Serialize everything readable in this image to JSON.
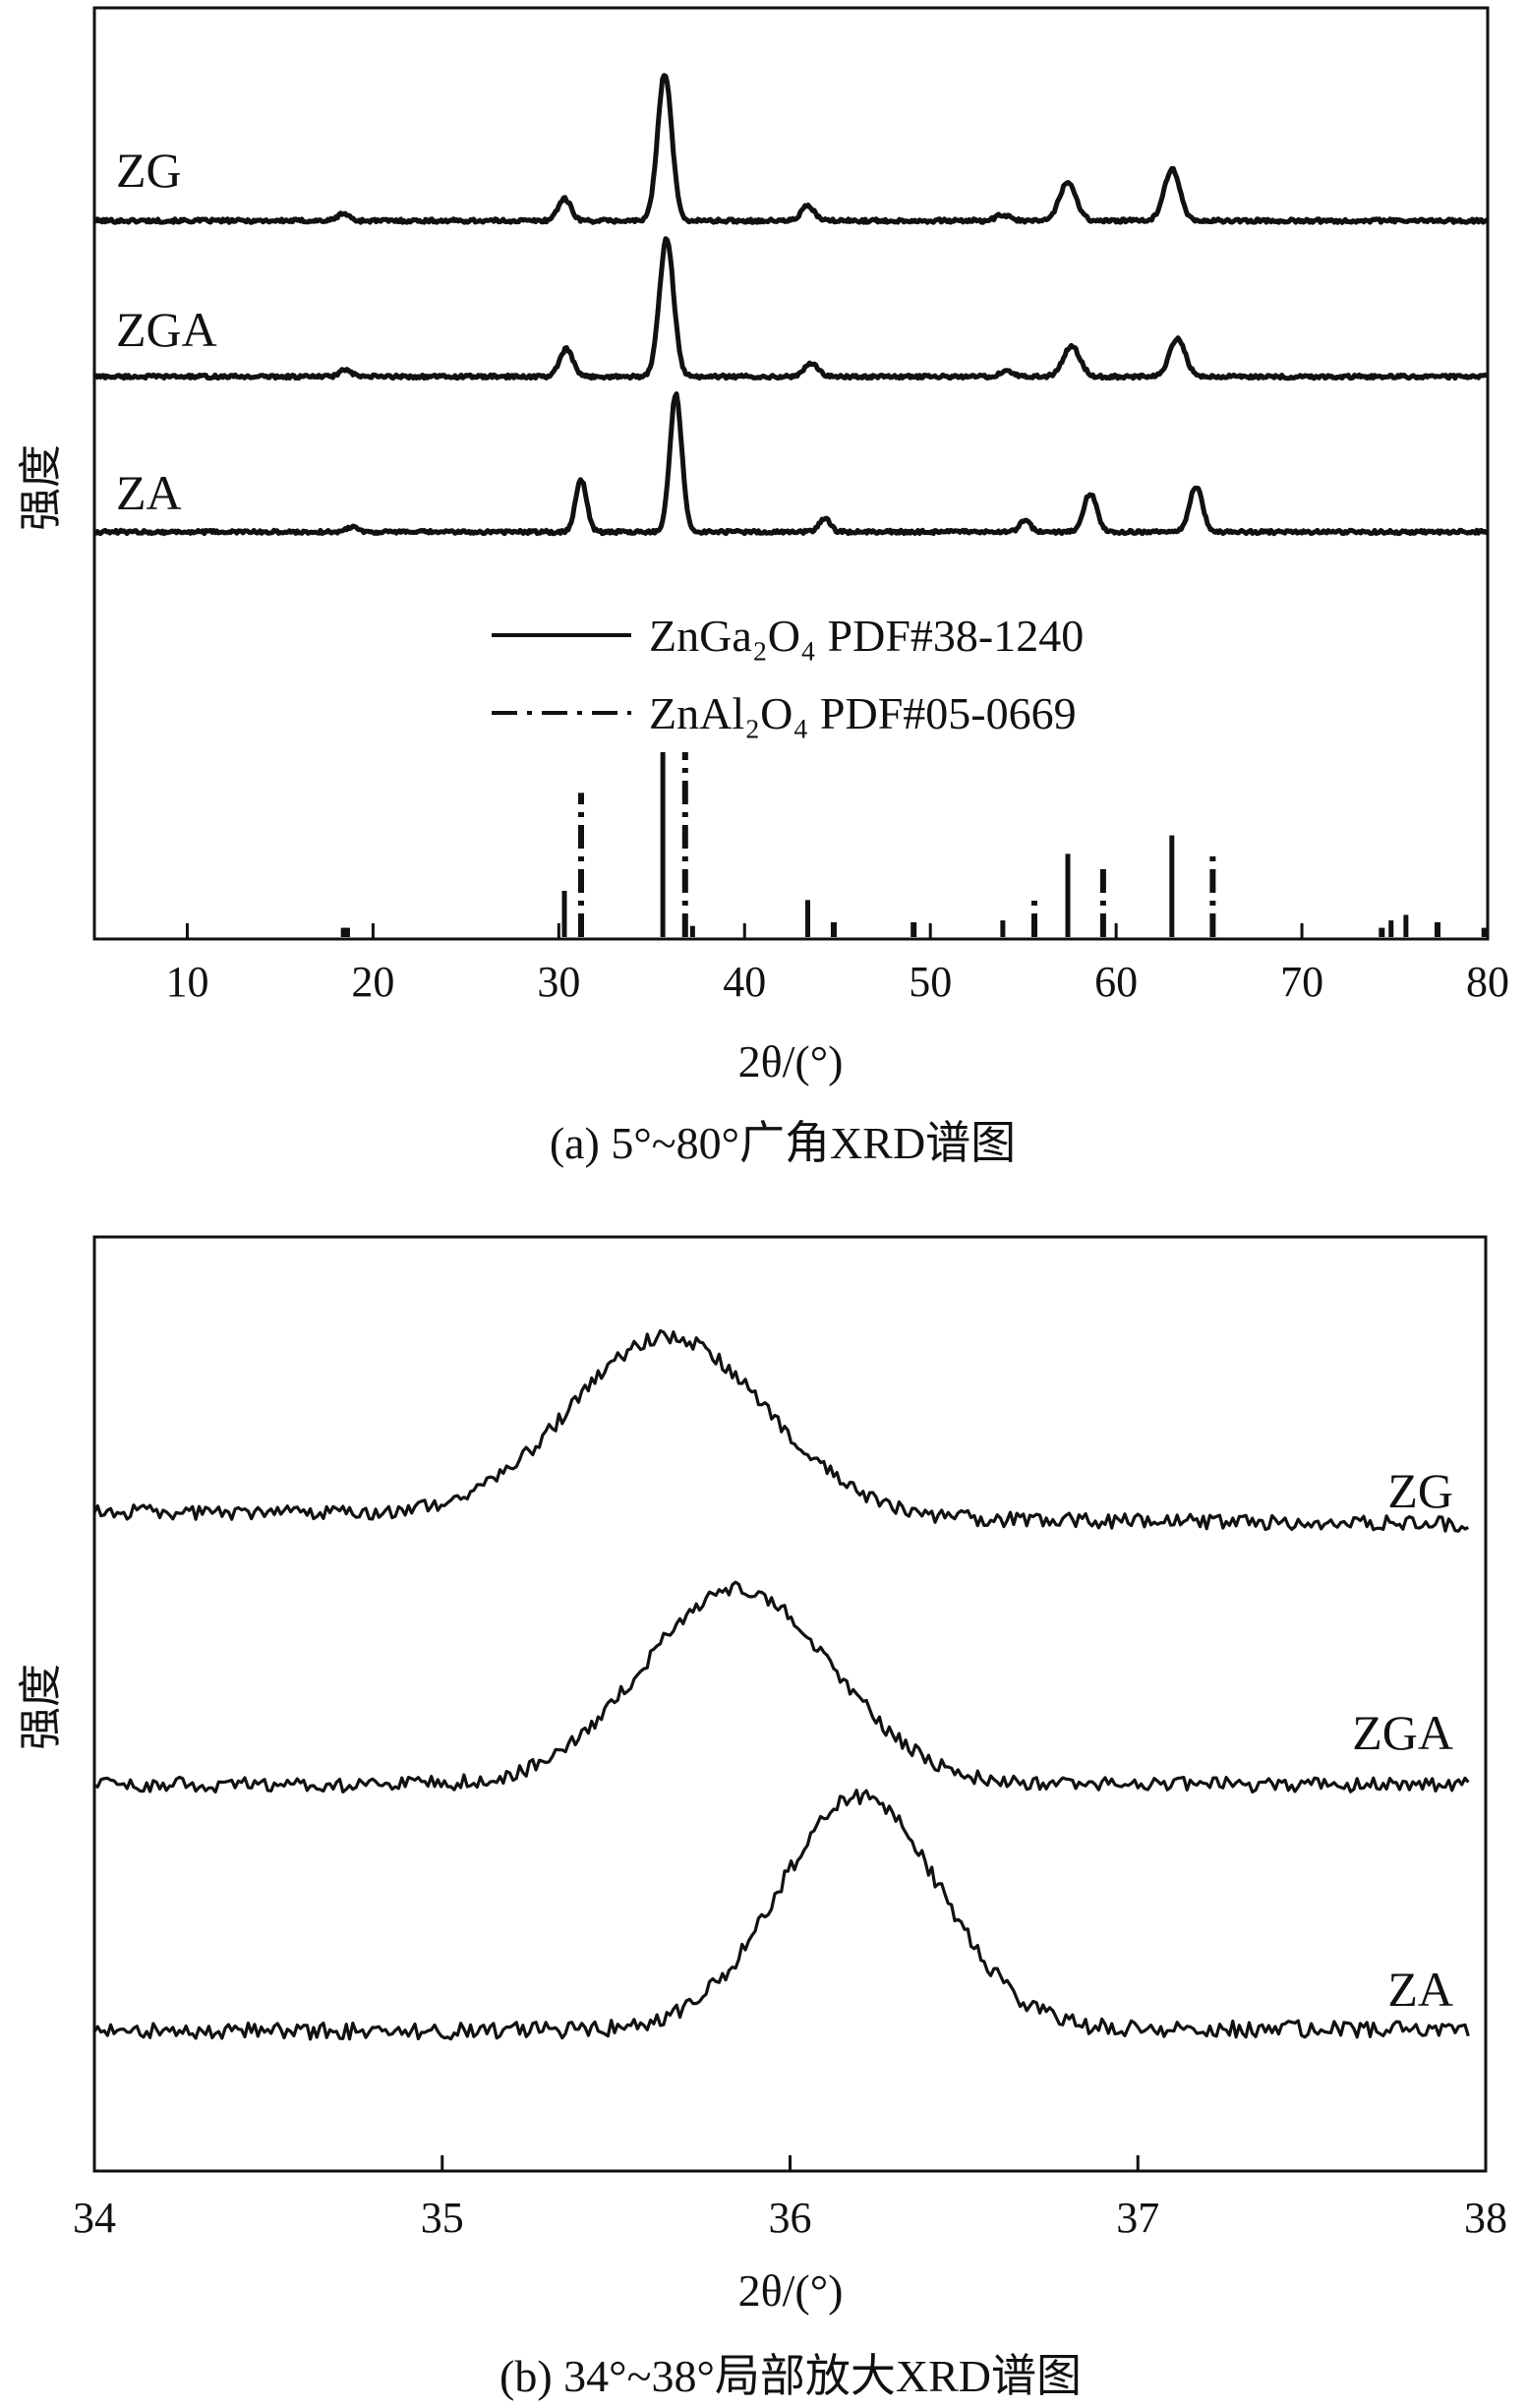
{
  "chart_data": [
    {
      "id": "a",
      "type": "line",
      "caption": "(a) 5°~80°广角XRD谱图",
      "xlabel": "2θ/(°)",
      "ylabel": "强度",
      "xlim": [
        5,
        80
      ],
      "xticks": [
        "10",
        "20",
        "30",
        "40",
        "50",
        "60",
        "70",
        "80"
      ],
      "xtick_values": [
        10,
        20,
        30,
        40,
        50,
        60,
        70,
        80
      ],
      "series": [
        {
          "name": "ZG",
          "baseline": 0.05,
          "noise": 0.012,
          "peaks": [
            [
              18.4,
              0.05,
              0.3
            ],
            [
              30.3,
              0.15,
              0.35
            ],
            [
              35.7,
              1.0,
              0.38
            ],
            [
              43.4,
              0.1,
              0.35
            ],
            [
              53.9,
              0.04,
              0.35
            ],
            [
              57.4,
              0.26,
              0.45
            ],
            [
              63.0,
              0.35,
              0.42
            ]
          ]
        },
        {
          "name": "ZGA",
          "baseline": 0.05,
          "noise": 0.012,
          "peaks": [
            [
              18.5,
              0.05,
              0.3
            ],
            [
              30.4,
              0.2,
              0.35
            ],
            [
              35.8,
              1.0,
              0.38
            ],
            [
              43.6,
              0.1,
              0.35
            ],
            [
              54.1,
              0.04,
              0.35
            ],
            [
              57.6,
              0.22,
              0.45
            ],
            [
              63.3,
              0.28,
              0.42
            ]
          ]
        },
        {
          "name": "ZA",
          "baseline": 0.05,
          "noise": 0.012,
          "peaks": [
            [
              18.9,
              0.04,
              0.3
            ],
            [
              31.2,
              0.38,
              0.3
            ],
            [
              36.3,
              1.0,
              0.32
            ],
            [
              44.3,
              0.1,
              0.3
            ],
            [
              55.1,
              0.08,
              0.3
            ],
            [
              58.6,
              0.28,
              0.35
            ],
            [
              64.3,
              0.33,
              0.35
            ]
          ]
        }
      ],
      "reference": [
        {
          "name": "ZnGa₂O₄ PDF#38-1240",
          "style": "solid",
          "sticks": [
            [
              18.4,
              0.05
            ],
            [
              30.3,
              0.25
            ],
            [
              35.6,
              1.0
            ],
            [
              37.2,
              0.06
            ],
            [
              43.4,
              0.2
            ],
            [
              53.9,
              0.09
            ],
            [
              57.4,
              0.45
            ],
            [
              63.0,
              0.55
            ],
            [
              74.8,
              0.09
            ],
            [
              75.6,
              0.12
            ],
            [
              79.8,
              0.05
            ]
          ]
        },
        {
          "name": "ZnAl₂O₄ PDF#05-0669",
          "style": "dashdot",
          "sticks": [
            [
              18.6,
              0.05
            ],
            [
              31.2,
              0.78
            ],
            [
              36.8,
              1.0
            ],
            [
              44.8,
              0.08
            ],
            [
              49.1,
              0.08
            ],
            [
              55.6,
              0.2
            ],
            [
              59.3,
              0.38
            ],
            [
              65.2,
              0.44
            ],
            [
              74.3,
              0.05
            ],
            [
              77.3,
              0.08
            ]
          ]
        }
      ]
    },
    {
      "id": "b",
      "type": "line",
      "caption": "(b) 34°~38°局部放大XRD谱图",
      "xlabel": "2θ/(°)",
      "ylabel": "强度",
      "xlim": [
        34,
        38
      ],
      "xticks": [
        "34",
        "35",
        "36",
        "37",
        "38"
      ],
      "xtick_values": [
        34,
        35,
        36,
        37,
        38
      ],
      "series": [
        {
          "name": "ZG",
          "peak_center": 35.65,
          "height": 0.73,
          "width": 0.28,
          "baseline_start": 0.23,
          "baseline_end": 0.18
        },
        {
          "name": "ZGA",
          "peak_center": 35.85,
          "height": 0.8,
          "width": 0.27,
          "baseline_start": 0.22,
          "baseline_end": 0.22
        },
        {
          "name": "ZA",
          "peak_center": 36.2,
          "height": 0.85,
          "width": 0.23,
          "baseline_start": 0.05,
          "baseline_end": 0.06
        }
      ]
    }
  ]
}
